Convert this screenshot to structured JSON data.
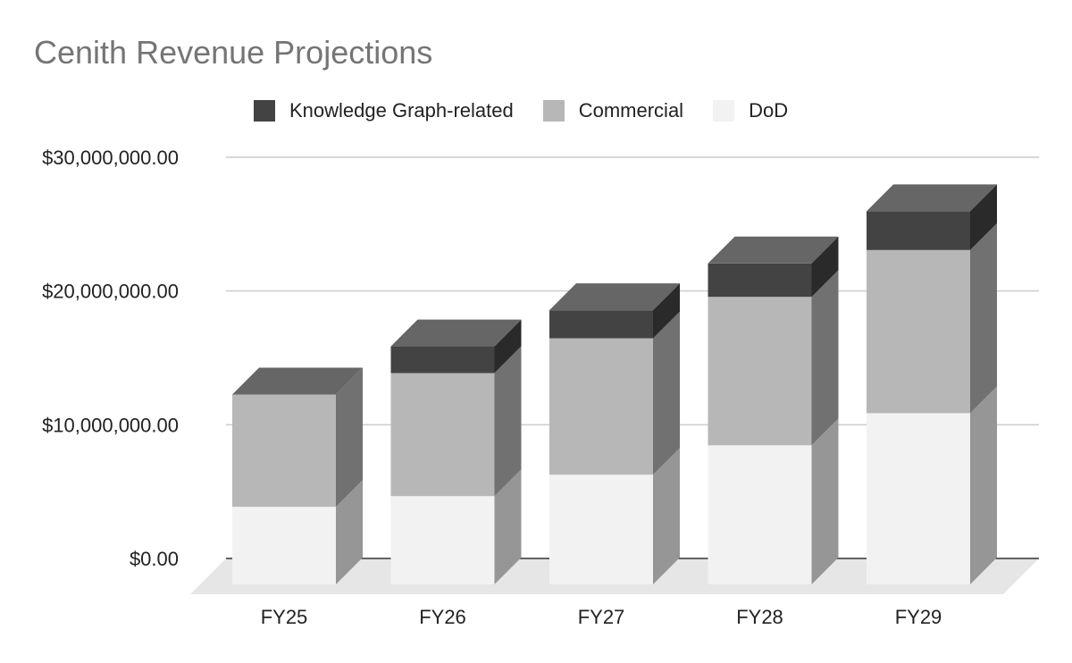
{
  "chart_data": {
    "type": "bar",
    "stacked": true,
    "three_d": true,
    "title": "Cenith Revenue Projections",
    "categories": [
      "FY25",
      "FY26",
      "FY27",
      "FY28",
      "FY29"
    ],
    "series": [
      {
        "name": "DoD",
        "values": [
          5800000,
          6600000,
          8200000,
          10400000,
          12800000
        ],
        "color": "#f2f2f2"
      },
      {
        "name": "Commercial",
        "values": [
          8400000,
          9200000,
          10200000,
          11100000,
          12200000
        ],
        "color": "#b7b7b7"
      },
      {
        "name": "Knowledge Graph-related",
        "values": [
          0,
          2000000,
          2100000,
          2500000,
          2900000
        ],
        "color": "#434343"
      }
    ],
    "legend_order": [
      "Knowledge Graph-related",
      "Commercial",
      "DoD"
    ],
    "legend_position": "top",
    "yticks": [
      0,
      10000000,
      20000000,
      30000000
    ],
    "ytick_labels": [
      "$0.00",
      "$10,000,000.00",
      "$20,000,000.00",
      "$30,000,000.00"
    ],
    "ylim": [
      0,
      30000000
    ],
    "xlabel": "",
    "ylabel": "",
    "grid": true
  }
}
